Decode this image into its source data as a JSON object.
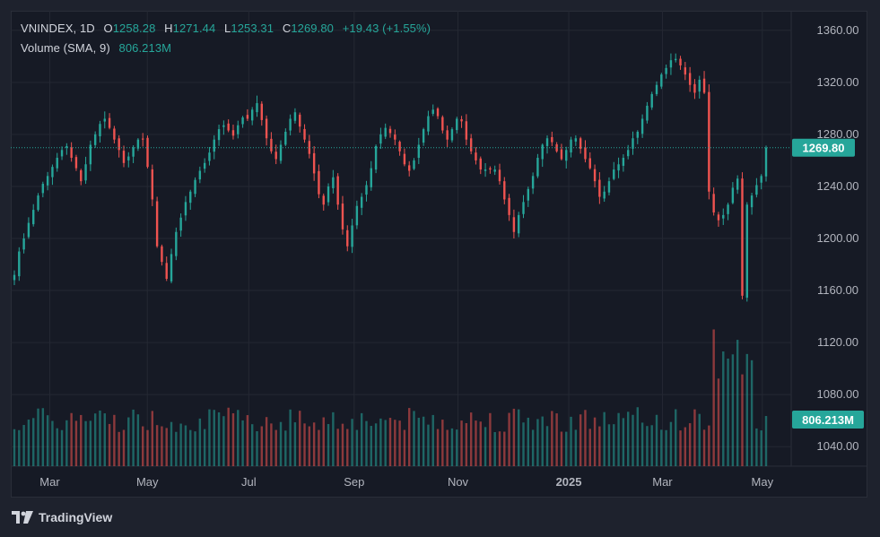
{
  "legend": {
    "symbol": "VNINDEX",
    "interval": "1D",
    "open_label": "O",
    "open": "1258.28",
    "high_label": "H",
    "high": "1271.44",
    "low_label": "L",
    "low": "1253.31",
    "close_label": "C",
    "close": "1269.80",
    "change": "+19.43 (+1.55%)",
    "volume_label": "Volume (SMA, 9)",
    "volume_value": "806.213M"
  },
  "brand": {
    "name": "TradingView",
    "logo": "tradingview-logo"
  },
  "colors": {
    "background": "#161a25",
    "up": "#26a69a",
    "down": "#ef5350",
    "grid": "#242833",
    "text": "#d1d4dc",
    "price_label_bg": "#26a69a"
  },
  "chart_data": {
    "type": "candlestick",
    "title": "VNINDEX, 1D",
    "y_axis": {
      "ticks": [
        "1360.00",
        "1320.00",
        "1280.00",
        "1240.00",
        "1200.00",
        "1160.00",
        "1120.00",
        "1080.00",
        "1040.00"
      ],
      "range": [
        1025,
        1375
      ]
    },
    "x_axis": {
      "ticks": [
        "Mar",
        "May",
        "Jul",
        "Sep",
        "Nov",
        "2025",
        "Mar",
        "May"
      ]
    },
    "last_price_label": "1269.80",
    "last_volume_label": "806.213M",
    "price_series": {
      "name": "VNINDEX daily close (approx.)",
      "values": [
        1172,
        1190,
        1200,
        1212,
        1222,
        1233,
        1242,
        1248,
        1255,
        1262,
        1268,
        1271,
        1262,
        1254,
        1244,
        1257,
        1272,
        1280,
        1288,
        1292,
        1285,
        1276,
        1268,
        1258,
        1263,
        1270,
        1276,
        1276,
        1255,
        1230,
        1194,
        1182,
        1169,
        1188,
        1205,
        1216,
        1228,
        1236,
        1245,
        1252,
        1258,
        1266,
        1276,
        1284,
        1287,
        1283,
        1279,
        1287,
        1293,
        1292,
        1299,
        1304,
        1291,
        1277,
        1267,
        1261,
        1272,
        1282,
        1292,
        1297,
        1286,
        1276,
        1265,
        1250,
        1234,
        1226,
        1240,
        1247,
        1226,
        1207,
        1194,
        1210,
        1225,
        1232,
        1241,
        1254,
        1271,
        1280,
        1285,
        1281,
        1276,
        1267,
        1257,
        1252,
        1260,
        1272,
        1284,
        1294,
        1299,
        1294,
        1283,
        1276,
        1284,
        1292,
        1290,
        1276,
        1267,
        1260,
        1253,
        1253,
        1253,
        1253,
        1244,
        1230,
        1218,
        1205,
        1218,
        1228,
        1238,
        1248,
        1262,
        1272,
        1277,
        1274,
        1267,
        1261,
        1268,
        1276,
        1277,
        1269,
        1261,
        1254,
        1244,
        1232,
        1236,
        1244,
        1253,
        1257,
        1262,
        1268,
        1277,
        1282,
        1292,
        1302,
        1311,
        1318,
        1326,
        1331,
        1337,
        1338,
        1333,
        1326,
        1318,
        1312,
        1322,
        1312,
        1236,
        1220,
        1214,
        1218,
        1226,
        1239,
        1246,
        1156,
        1226,
        1233,
        1241,
        1248,
        1269.8
      ],
      "ylim": [
        1025,
        1375
      ]
    },
    "volume_series": {
      "name": "Volume",
      "unit": "M shares (relative)",
      "sma_period": 9,
      "sma_last": "806.213M"
    },
    "last_bar": {
      "open": 1258.28,
      "high": 1271.44,
      "low": 1253.31,
      "close": 1269.8,
      "change": 19.43,
      "change_pct": 1.55
    }
  }
}
